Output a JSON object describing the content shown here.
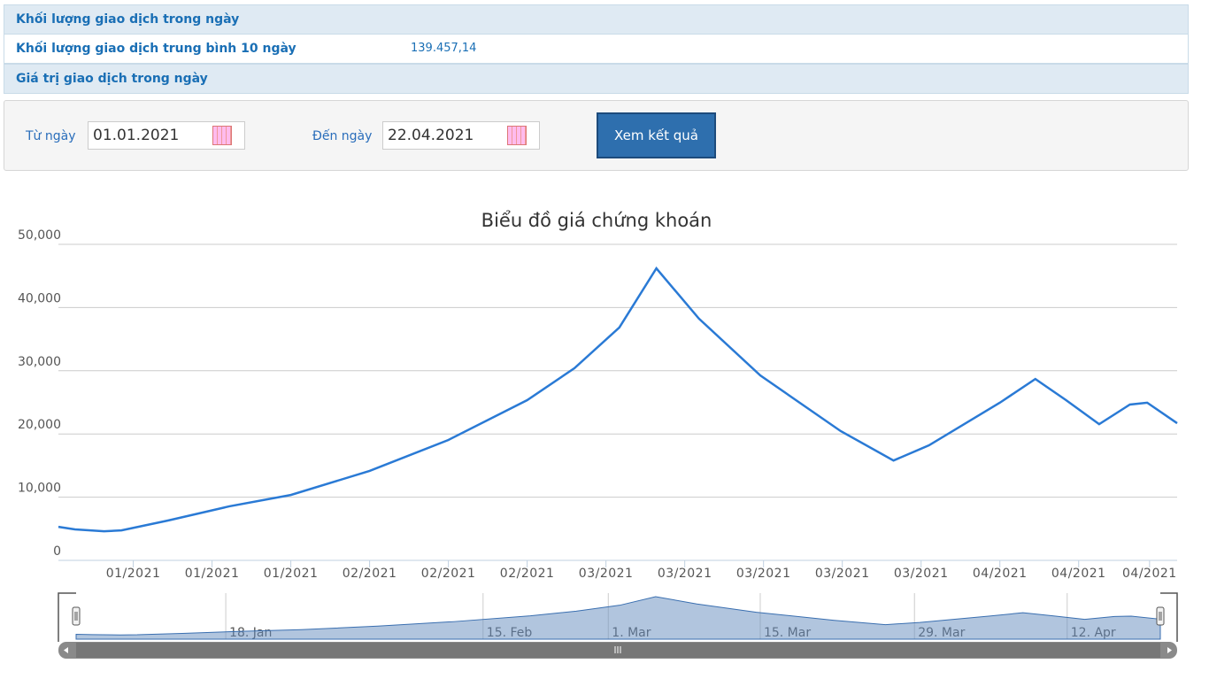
{
  "info_table": {
    "rows": [
      [
        "Khối lượng giao dịch trong ngày"
      ],
      [
        "Khối lượng giao dịch trung bình 10 ngày",
        "139.457,14"
      ],
      [
        "Giá trị giao dịch trong ngày"
      ]
    ]
  },
  "form": {
    "from_label": "Từ ngày",
    "from_value": "01.01.2021",
    "to_label": "Đến ngày",
    "to_value": "22.04.2021",
    "button": "Xem kết quả"
  },
  "chart_data": {
    "type": "line",
    "title": "Biểu đồ giá chứng khoán",
    "x": [
      -9.5,
      -7.4,
      -3.7,
      -1.5,
      4.4,
      12.2,
      20,
      30,
      40,
      50,
      56,
      61.7,
      66.4,
      71.8,
      79.6,
      89.8,
      96.5,
      101,
      110,
      114.5,
      118.4,
      122.6,
      126.5,
      128.7,
      132.5
    ],
    "series": [
      {
        "color": "#2a7ad5",
        "values": [
          5300,
          4900,
          4600,
          4750,
          6300,
          8550,
          10350,
          14150,
          19050,
          25350,
          30400,
          36850,
          46200,
          38250,
          29250,
          20450,
          15800,
          18200,
          24950,
          28700,
          25350,
          21550,
          24650,
          24950,
          21700
        ]
      }
    ],
    "xlim": [
      -9.5,
      132.5
    ],
    "ylim": [
      0,
      50000
    ],
    "yticks": [
      0,
      {
        "value": 10000,
        "label": "10,000"
      },
      {
        "value": 20000,
        "label": "20,000"
      },
      {
        "value": 30000,
        "label": "30,000"
      },
      {
        "value": 40000,
        "label": "40,000"
      },
      {
        "value": 50000,
        "label": "50,000"
      }
    ],
    "xticks": [
      {
        "value": 0,
        "label": "01/2021"
      },
      {
        "value": 10,
        "label": "01/2021"
      },
      {
        "value": 20,
        "label": "01/2021"
      },
      {
        "value": 30,
        "label": "02/2021"
      },
      {
        "value": 40,
        "label": "02/2021"
      },
      {
        "value": 50,
        "label": "02/2021"
      },
      {
        "value": 60,
        "label": "03/2021"
      },
      {
        "value": 70,
        "label": "03/2021"
      },
      {
        "value": 80,
        "label": "03/2021"
      },
      {
        "value": 90,
        "label": "03/2021"
      },
      {
        "value": 100,
        "label": "03/2021"
      },
      {
        "value": 110,
        "label": "04/2021"
      },
      {
        "value": 120,
        "label": "04/2021"
      },
      {
        "value": 129,
        "label": "04/2021"
      }
    ],
    "grid": true,
    "navigator": {
      "xticks": [
        {
          "value": 10.1,
          "label": "18. Jan"
        },
        {
          "value": 43.8,
          "label": "15. Feb"
        },
        {
          "value": 60.2,
          "label": "1. Mar"
        },
        {
          "value": 80.1,
          "label": "15. Mar"
        },
        {
          "value": 100.3,
          "label": "29. Mar"
        },
        {
          "value": 120.3,
          "label": "12. Apr"
        }
      ]
    }
  }
}
